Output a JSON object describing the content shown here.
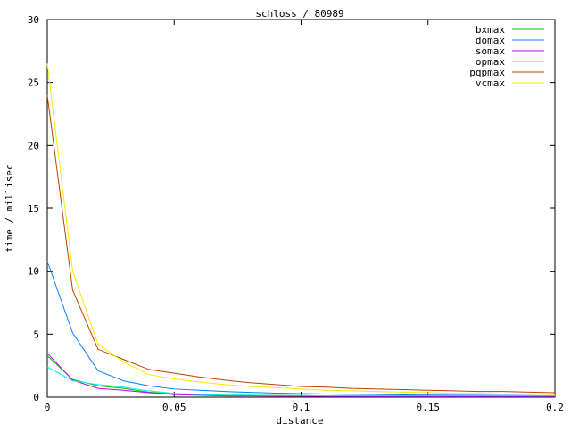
{
  "chart_data": {
    "type": "line",
    "title": "schloss / 80989",
    "xlabel": "distance",
    "ylabel": "time / millisec",
    "xlim": [
      0,
      0.2
    ],
    "ylim": [
      0,
      30
    ],
    "xticks": [
      "0",
      "0.05",
      "0.1",
      "0.15",
      "0.2"
    ],
    "yticks": [
      "0",
      "5",
      "10",
      "15",
      "20",
      "25",
      "30"
    ],
    "grid": false,
    "legend": "top-right",
    "x": [
      0,
      0.01,
      0.02,
      0.03,
      0.04,
      0.05,
      0.06,
      0.07,
      0.08,
      0.09,
      0.1,
      0.11,
      0.12,
      0.13,
      0.14,
      0.15,
      0.16,
      0.17,
      0.18,
      0.19,
      0.2
    ],
    "series": [
      {
        "name": "bxmax",
        "color": "#00c000",
        "values": [
          3.3,
          1.4,
          0.9,
          0.7,
          0.4,
          0.25,
          0.2,
          0.15,
          0.15,
          0.12,
          0.12,
          0.1,
          0.1,
          0.1,
          0.1,
          0.1,
          0.08,
          0.08,
          0.08,
          0.08,
          0.08
        ]
      },
      {
        "name": "domax",
        "color": "#0080ff",
        "values": [
          10.8,
          5.1,
          2.1,
          1.3,
          0.9,
          0.65,
          0.55,
          0.45,
          0.38,
          0.32,
          0.28,
          0.25,
          0.22,
          0.2,
          0.18,
          0.16,
          0.15,
          0.14,
          0.13,
          0.12,
          0.1
        ]
      },
      {
        "name": "somax",
        "color": "#c000ff",
        "values": [
          3.5,
          1.35,
          0.7,
          0.55,
          0.35,
          0.2,
          0.15,
          0.1,
          0.1,
          0.08,
          0.08,
          0.06,
          0.06,
          0.05,
          0.05,
          0.05,
          0.05,
          0.05,
          0.05,
          0.05,
          0.05
        ]
      },
      {
        "name": "opmax",
        "color": "#00eeee",
        "values": [
          2.4,
          1.3,
          1.0,
          0.8,
          0.5,
          0.3,
          0.2,
          0.15,
          0.15,
          0.12,
          0.12,
          0.1,
          0.1,
          0.1,
          0.1,
          0.1,
          0.1,
          0.1,
          0.1,
          0.1,
          0.1
        ]
      },
      {
        "name": "pqpmax",
        "color": "#c04000",
        "values": [
          24,
          8.5,
          3.8,
          3.0,
          2.2,
          1.9,
          1.6,
          1.35,
          1.15,
          1.0,
          0.85,
          0.8,
          0.7,
          0.65,
          0.6,
          0.55,
          0.5,
          0.45,
          0.45,
          0.4,
          0.35
        ]
      },
      {
        "name": "vcmax",
        "color": "#eeee00",
        "values": [
          26.5,
          10,
          4.2,
          2.8,
          1.8,
          1.45,
          1.2,
          1.0,
          0.85,
          0.75,
          0.65,
          0.55,
          0.5,
          0.45,
          0.4,
          0.35,
          0.3,
          0.3,
          0.25,
          0.25,
          0.2
        ]
      }
    ]
  }
}
